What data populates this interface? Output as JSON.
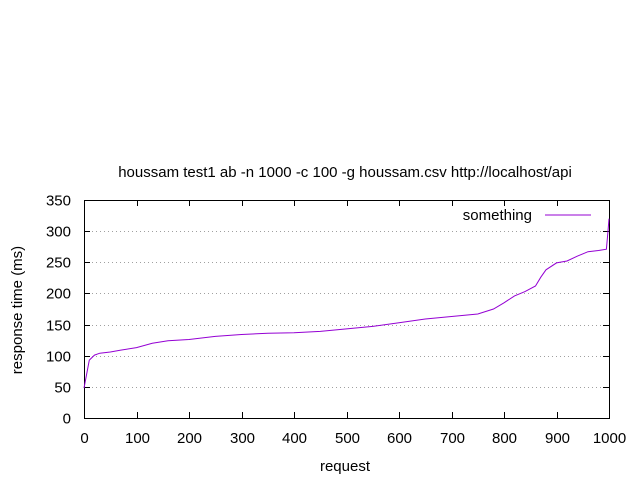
{
  "chart_data": {
    "type": "line",
    "title": "houssam test1  ab -n 1000 -c 100 -g houssam.csv  http://localhost/api",
    "xlabel": "request",
    "ylabel": "response time (ms)",
    "xlim": [
      0,
      1000
    ],
    "ylim": [
      0,
      350
    ],
    "xticks": [
      0,
      100,
      200,
      300,
      400,
      500,
      600,
      700,
      800,
      900,
      1000
    ],
    "yticks": [
      0,
      50,
      100,
      150,
      200,
      250,
      300,
      350
    ],
    "grid": "horizontal-dotted",
    "legend_position": "top-right",
    "series": [
      {
        "name": "something",
        "color": "#9400d3",
        "x": [
          0,
          5,
          10,
          20,
          30,
          50,
          70,
          100,
          130,
          160,
          200,
          250,
          300,
          350,
          400,
          450,
          500,
          550,
          600,
          650,
          700,
          750,
          780,
          800,
          820,
          840,
          860,
          870,
          880,
          900,
          920,
          940,
          960,
          980,
          995,
          998,
          1000
        ],
        "y": [
          48,
          70,
          93,
          101,
          104,
          106,
          109,
          113,
          120,
          124,
          126,
          131,
          134,
          136,
          137,
          139,
          143,
          147,
          153,
          159,
          163,
          167,
          175,
          185,
          196,
          203,
          212,
          226,
          238,
          249,
          252,
          260,
          267,
          269,
          271,
          300,
          320
        ]
      }
    ]
  }
}
